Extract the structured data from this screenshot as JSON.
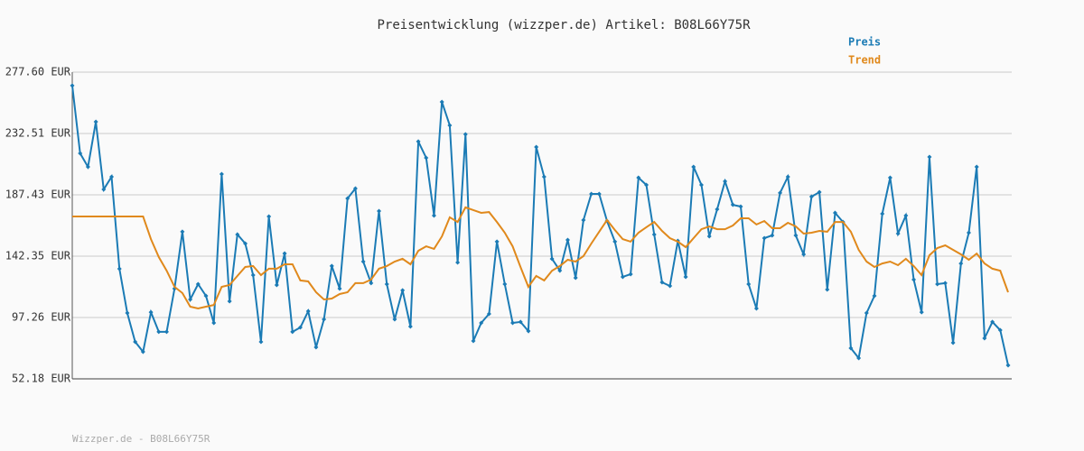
{
  "chart_data": {
    "type": "line",
    "title": "Preisentwicklung (wizzper.de) Artikel: B08L66Y75R",
    "footer": "Wizzper.de - B08L66Y75R",
    "ylim": [
      52.18,
      277.6
    ],
    "yticks": [
      {
        "value": 52.18,
        "label": "52.18 EUR"
      },
      {
        "value": 97.26,
        "label": "97.26 EUR"
      },
      {
        "value": 142.35,
        "label": "142.35 EUR"
      },
      {
        "value": 187.43,
        "label": "187.43 EUR"
      },
      {
        "value": 232.51,
        "label": "232.51 EUR"
      },
      {
        "value": 277.6,
        "label": "277.60 EUR"
      }
    ],
    "grid": true,
    "legend": "top-right",
    "series": [
      {
        "name": "Preis",
        "color": "#1b7bb5",
        "markers": true,
        "values": [
          267.7,
          217.9,
          208.0,
          241.1,
          191.4,
          200.7,
          133.1,
          100.6,
          79.4,
          72.1,
          101.2,
          86.7,
          86.7,
          118.5,
          160.3,
          110.5,
          121.8,
          113.2,
          93.3,
          202.7,
          109.2,
          158.3,
          151.6,
          128.4,
          79.4,
          171.5,
          121.1,
          144.3,
          86.7,
          90.0,
          101.9,
          75.4,
          95.9,
          135.1,
          118.5,
          184.8,
          192.1,
          138.4,
          122.5,
          175.5,
          121.8,
          95.9,
          117.2,
          90.6,
          226.6,
          214.6,
          172.2,
          255.7,
          238.5,
          137.7,
          231.9,
          80.0,
          93.3,
          99.9,
          153.0,
          121.8,
          93.3,
          94.0,
          87.3,
          222.6,
          200.7,
          140.4,
          131.7,
          154.3,
          126.4,
          168.9,
          188.1,
          188.1,
          168.2,
          153.0,
          127.1,
          129.1,
          200.0,
          194.7,
          158.3,
          123.1,
          120.5,
          153.6,
          127.1,
          208.0,
          194.7,
          156.9,
          176.8,
          197.4,
          180.1,
          178.8,
          121.8,
          103.9,
          155.6,
          157.6,
          188.8,
          200.7,
          157.6,
          143.7,
          186.1,
          189.4,
          117.8,
          174.2,
          167.5,
          74.7,
          67.4,
          100.6,
          113.2,
          173.5,
          200.0,
          158.9,
          172.2,
          125.1,
          101.2,
          215.3,
          121.8,
          122.5,
          78.7,
          137.0,
          159.6,
          208.0,
          82.0,
          94.0,
          88.0,
          62.1
        ]
      },
      {
        "name": "Trend",
        "color": "#e0891c",
        "markers": false,
        "values": [
          171.5,
          171.5,
          171.5,
          171.5,
          171.5,
          171.5,
          171.5,
          171.5,
          171.5,
          171.5,
          154.9,
          141.7,
          131.7,
          119.8,
          115.2,
          105.2,
          103.9,
          105.2,
          106.5,
          119.8,
          121.1,
          127.8,
          134.4,
          135.1,
          128.4,
          133.1,
          133.1,
          136.4,
          136.4,
          124.5,
          123.8,
          115.8,
          110.5,
          111.2,
          114.5,
          115.8,
          122.5,
          122.5,
          125.1,
          133.1,
          135.1,
          138.4,
          140.4,
          136.4,
          146.3,
          149.6,
          147.7,
          156.9,
          170.9,
          167.5,
          178.2,
          176.2,
          174.2,
          174.8,
          167.5,
          159.6,
          149.6,
          134.4,
          119.8,
          127.8,
          124.5,
          131.7,
          135.1,
          139.7,
          138.4,
          142.4,
          151.6,
          160.3,
          168.9,
          161.6,
          154.9,
          153.0,
          159.6,
          163.6,
          167.5,
          160.9,
          155.6,
          153.0,
          149.0,
          155.6,
          162.2,
          164.2,
          162.2,
          162.2,
          164.9,
          170.2,
          170.2,
          165.6,
          168.2,
          162.9,
          162.9,
          166.9,
          164.2,
          158.9,
          159.6,
          160.9,
          160.3,
          167.5,
          167.5,
          160.3,
          147.0,
          138.4,
          134.4,
          137.0,
          138.4,
          135.7,
          140.4,
          135.1,
          128.4,
          143.0,
          148.3,
          150.3,
          147.0,
          143.7,
          139.7,
          144.3,
          137.0,
          133.1,
          131.7,
          115.8
        ]
      }
    ]
  }
}
